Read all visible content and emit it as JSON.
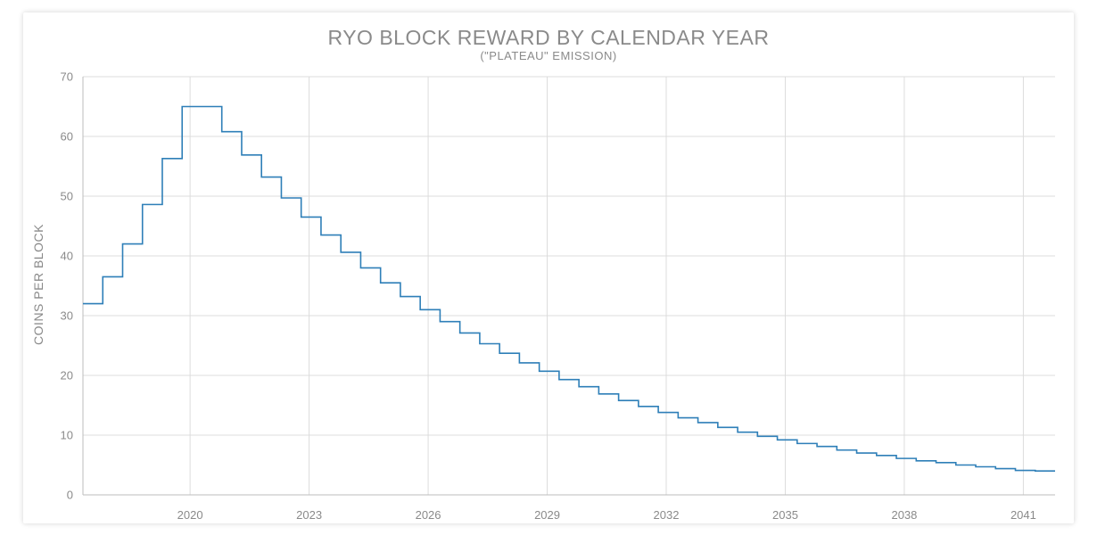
{
  "chart_data": {
    "type": "line",
    "step": true,
    "title": "RYO BLOCK REWARD BY CALENDAR YEAR",
    "subtitle": "(\"PLATEAU\" EMISSION)",
    "ylabel": "COINS PER BLOCK",
    "xlabel": "",
    "ylim": [
      0,
      70
    ],
    "yticks": [
      0,
      10,
      20,
      30,
      40,
      50,
      60,
      70
    ],
    "xlim": [
      2017.3,
      2041.8
    ],
    "xticks": [
      2020,
      2023,
      2026,
      2029,
      2032,
      2035,
      2038,
      2041
    ],
    "grid": true,
    "line_color": "#2e7fb8",
    "series": [
      {
        "x": [
          2017.3,
          2017.8,
          2018.3,
          2018.8,
          2019.3,
          2019.8,
          2020.8,
          2021.3,
          2021.8,
          2022.3,
          2022.8,
          2023.3,
          2023.8,
          2024.3,
          2024.8,
          2025.3,
          2025.8,
          2026.3,
          2026.8,
          2027.3,
          2027.8,
          2028.3,
          2028.8,
          2029.3,
          2029.8,
          2030.3,
          2030.8,
          2031.3,
          2031.8,
          2032.3,
          2032.8,
          2033.3,
          2033.8,
          2034.3,
          2034.8,
          2035.3,
          2035.8,
          2036.3,
          2036.8,
          2037.3,
          2037.8,
          2038.3,
          2038.8,
          2039.3,
          2039.8,
          2040.3,
          2040.8,
          2041.3
        ],
        "values": [
          32,
          36.5,
          42,
          48.6,
          56.3,
          65,
          60.8,
          56.9,
          53.2,
          49.7,
          46.5,
          43.5,
          40.6,
          38,
          35.5,
          33.2,
          31,
          29,
          27.1,
          25.3,
          23.7,
          22.1,
          20.7,
          19.3,
          18.1,
          16.9,
          15.8,
          14.8,
          13.8,
          12.9,
          12.1,
          11.3,
          10.5,
          9.8,
          9.2,
          8.6,
          8.1,
          7.5,
          7,
          6.6,
          6.1,
          5.7,
          5.4,
          5,
          4.7,
          4.4,
          4.1,
          4
        ]
      }
    ]
  }
}
